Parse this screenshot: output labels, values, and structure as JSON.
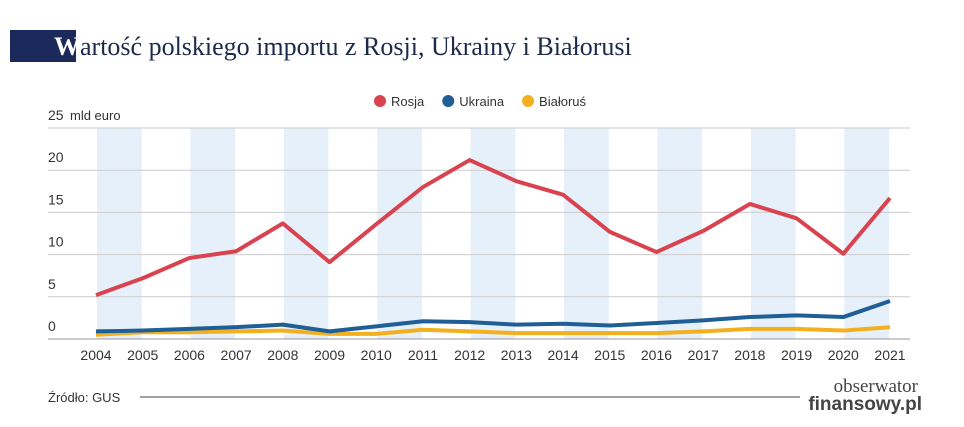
{
  "chart_data": {
    "type": "line",
    "title": "Wartość polskiego importu z Rosji, Ukrainy i Białorusi",
    "y_label": "mld euro",
    "source": "Źródło: GUS",
    "logo": [
      "obserwator",
      "finansowy.pl"
    ],
    "x": [
      "2004",
      "2005",
      "2006",
      "2007",
      "2008",
      "2009",
      "2010",
      "2011",
      "2012",
      "2013",
      "2014",
      "2015",
      "2016",
      "2017",
      "2018",
      "2019",
      "2020",
      "2021"
    ],
    "series": [
      {
        "name": "Rosja",
        "color": "#d9434f",
        "values": [
          5.2,
          7.2,
          9.6,
          10.4,
          13.7,
          9.1,
          13.6,
          18.0,
          21.2,
          18.7,
          17.1,
          12.7,
          10.3,
          12.8,
          16.0,
          14.3,
          10.1,
          16.7
        ]
      },
      {
        "name": "Ukraina",
        "color": "#1f5f96",
        "values": [
          0.9,
          1.0,
          1.2,
          1.4,
          1.7,
          0.9,
          1.5,
          2.1,
          2.0,
          1.7,
          1.8,
          1.6,
          1.9,
          2.2,
          2.6,
          2.8,
          2.6,
          4.5
        ]
      },
      {
        "name": "Białoruś",
        "color": "#f2b01e",
        "values": [
          0.5,
          0.8,
          0.8,
          0.9,
          1.0,
          0.6,
          0.6,
          1.1,
          0.9,
          0.7,
          0.7,
          0.7,
          0.7,
          0.9,
          1.2,
          1.2,
          1.0,
          1.4
        ]
      }
    ],
    "ylim": [
      0,
      25
    ],
    "yticks": [
      0,
      5,
      10,
      15,
      20,
      25
    ],
    "grid": true,
    "legend": "top"
  }
}
